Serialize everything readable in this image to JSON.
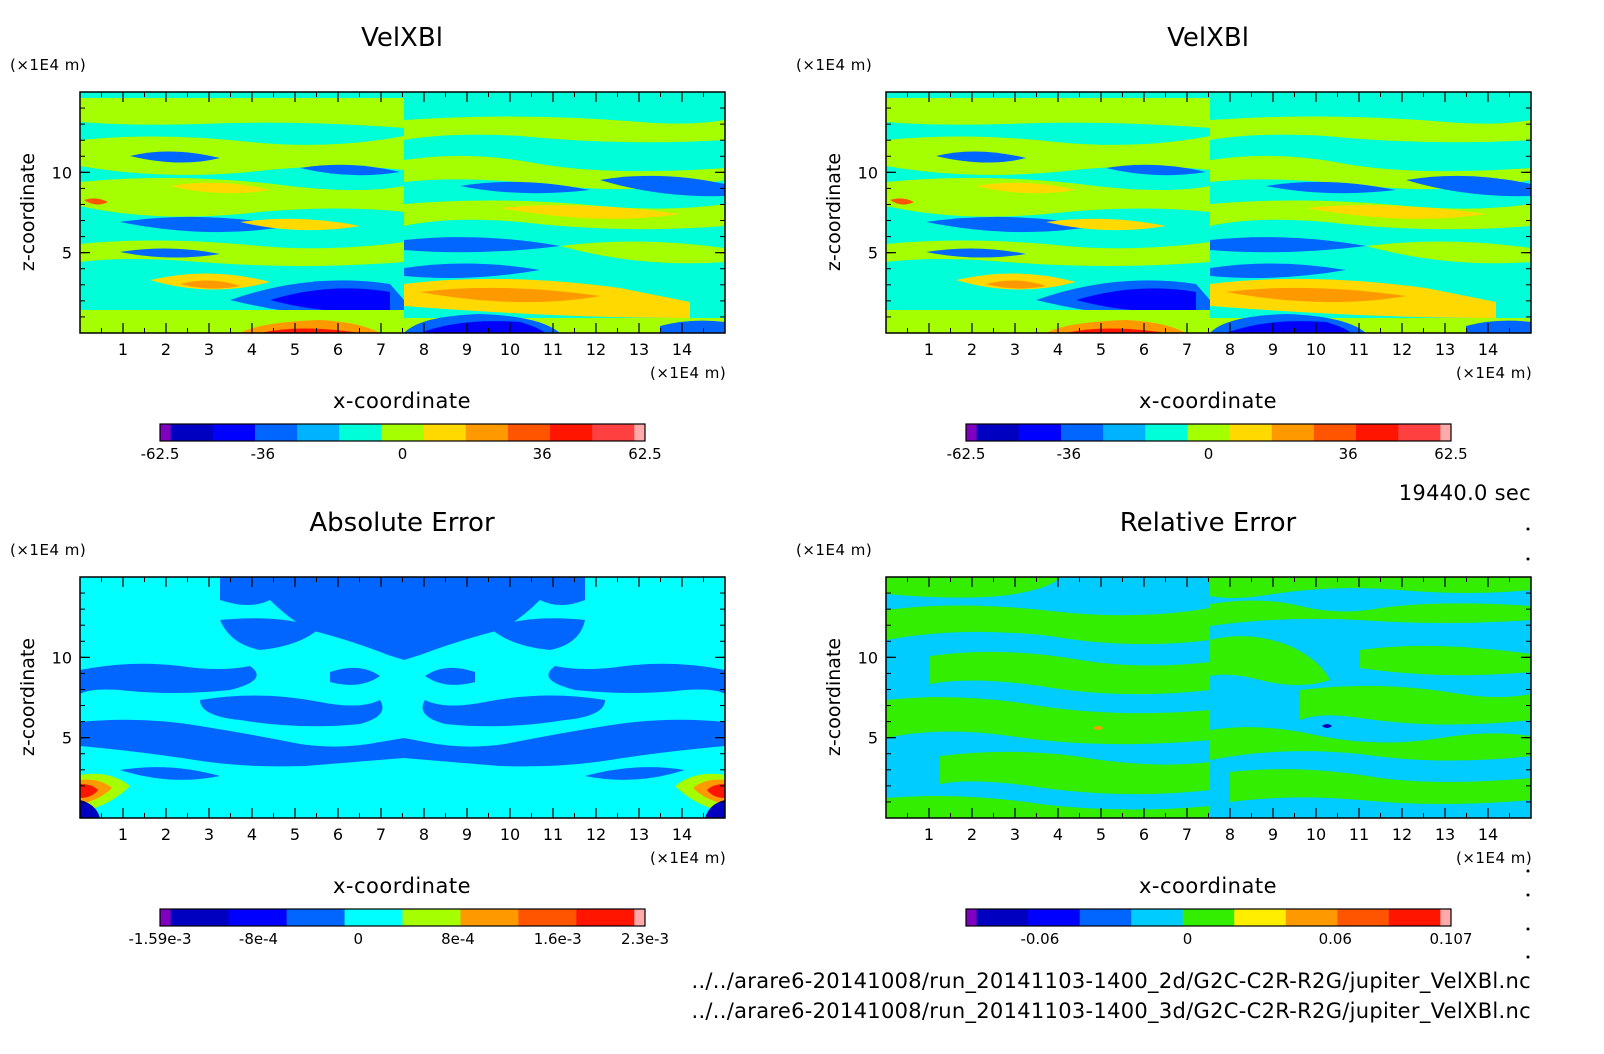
{
  "time_label": "19440.0 sec",
  "files": [
    "../../arare6-20141008/run_20141103-1400_2d/G2C-C2R-R2G/jupiter_VelXBl.nc",
    "../../arare6-20141008/run_20141103-1400_3d/G2C-C2R-R2G/jupiter_VelXBl.nc"
  ],
  "chart_data": [
    {
      "type": "heatmap",
      "title": "VelXBl",
      "xlabel": "x-coordinate",
      "ylabel": "z-coordinate",
      "x_unit": "(×1E4 m)",
      "y_unit": "(×1E4 m)",
      "x_ticks": [
        "1",
        "2",
        "3",
        "4",
        "5",
        "6",
        "7",
        "8",
        "9",
        "10",
        "11",
        "12",
        "13",
        "14"
      ],
      "y_ticks": [
        "5",
        "10"
      ],
      "xlim": [
        0,
        15
      ],
      "ylim": [
        0,
        15
      ],
      "colorbar": {
        "ticks": [
          "-62.5",
          "-36",
          "0",
          "36",
          "62.5"
        ],
        "tick_values": [
          -62.5,
          -36,
          0,
          36,
          62.5
        ],
        "range": [
          -62.5,
          62.5
        ],
        "colors": [
          "#7f00bf",
          "#0000c0",
          "#0000ff",
          "#0066ff",
          "#00b2ff",
          "#00ffd9",
          "#a6ff00",
          "#ffd900",
          "#ff9900",
          "#ff5500",
          "#ff1500",
          "#ff4040",
          "#ffaaaa"
        ]
      }
    },
    {
      "type": "heatmap",
      "title": "VelXBl",
      "xlabel": "x-coordinate",
      "ylabel": "z-coordinate",
      "x_unit": "(×1E4 m)",
      "y_unit": "(×1E4 m)",
      "x_ticks": [
        "1",
        "2",
        "3",
        "4",
        "5",
        "6",
        "7",
        "8",
        "9",
        "10",
        "11",
        "12",
        "13",
        "14"
      ],
      "y_ticks": [
        "5",
        "10"
      ],
      "xlim": [
        0,
        15
      ],
      "ylim": [
        0,
        15
      ],
      "colorbar": {
        "ticks": [
          "-62.5",
          "-36",
          "0",
          "36",
          "62.5"
        ],
        "tick_values": [
          -62.5,
          -36,
          0,
          36,
          62.5
        ],
        "range": [
          -62.5,
          62.5
        ],
        "colors": [
          "#7f00bf",
          "#0000c0",
          "#0000ff",
          "#0066ff",
          "#00b2ff",
          "#00ffd9",
          "#a6ff00",
          "#ffd900",
          "#ff9900",
          "#ff5500",
          "#ff1500",
          "#ff4040",
          "#ffaaaa"
        ]
      }
    },
    {
      "type": "heatmap",
      "title": "Absolute Error",
      "xlabel": "x-coordinate",
      "ylabel": "z-coordinate",
      "x_unit": "(×1E4 m)",
      "y_unit": "(×1E4 m)",
      "x_ticks": [
        "1",
        "2",
        "3",
        "4",
        "5",
        "6",
        "7",
        "8",
        "9",
        "10",
        "11",
        "12",
        "13",
        "14"
      ],
      "y_ticks": [
        "5",
        "10"
      ],
      "xlim": [
        0,
        15
      ],
      "ylim": [
        0,
        15
      ],
      "colorbar": {
        "ticks": [
          "-1.59e-3",
          "-8e-4",
          "0",
          "8e-4",
          "1.6e-3",
          "2.3e-3"
        ],
        "tick_values": [
          -0.00159,
          -0.0008,
          0,
          0.0008,
          0.0016,
          0.0023
        ],
        "range": [
          -0.00159,
          0.0023
        ],
        "colors": [
          "#7f00bf",
          "#0000c0",
          "#0000ff",
          "#0066ff",
          "#00ffff",
          "#a6ff00",
          "#ff9900",
          "#ff5500",
          "#ff1500",
          "#ffaaaa"
        ]
      }
    },
    {
      "type": "heatmap",
      "title": "Relative Error",
      "xlabel": "x-coordinate",
      "ylabel": "z-coordinate",
      "x_unit": "(×1E4 m)",
      "y_unit": "(×1E4 m)",
      "x_ticks": [
        "1",
        "2",
        "3",
        "4",
        "5",
        "6",
        "7",
        "8",
        "9",
        "10",
        "11",
        "12",
        "13",
        "14"
      ],
      "y_ticks": [
        "5",
        "10"
      ],
      "xlim": [
        0,
        15
      ],
      "ylim": [
        0,
        15
      ],
      "colorbar": {
        "ticks": [
          "-0.06",
          "0",
          "0.06",
          "0.107"
        ],
        "tick_values": [
          -0.06,
          0,
          0.06,
          0.107
        ],
        "range": [
          -0.09,
          0.107
        ],
        "colors": [
          "#7f00bf",
          "#0000c0",
          "#0000ff",
          "#0066ff",
          "#00ccff",
          "#33ee00",
          "#ffee00",
          "#ff9900",
          "#ff5500",
          "#ff1500",
          "#ffaaaa"
        ]
      }
    }
  ]
}
